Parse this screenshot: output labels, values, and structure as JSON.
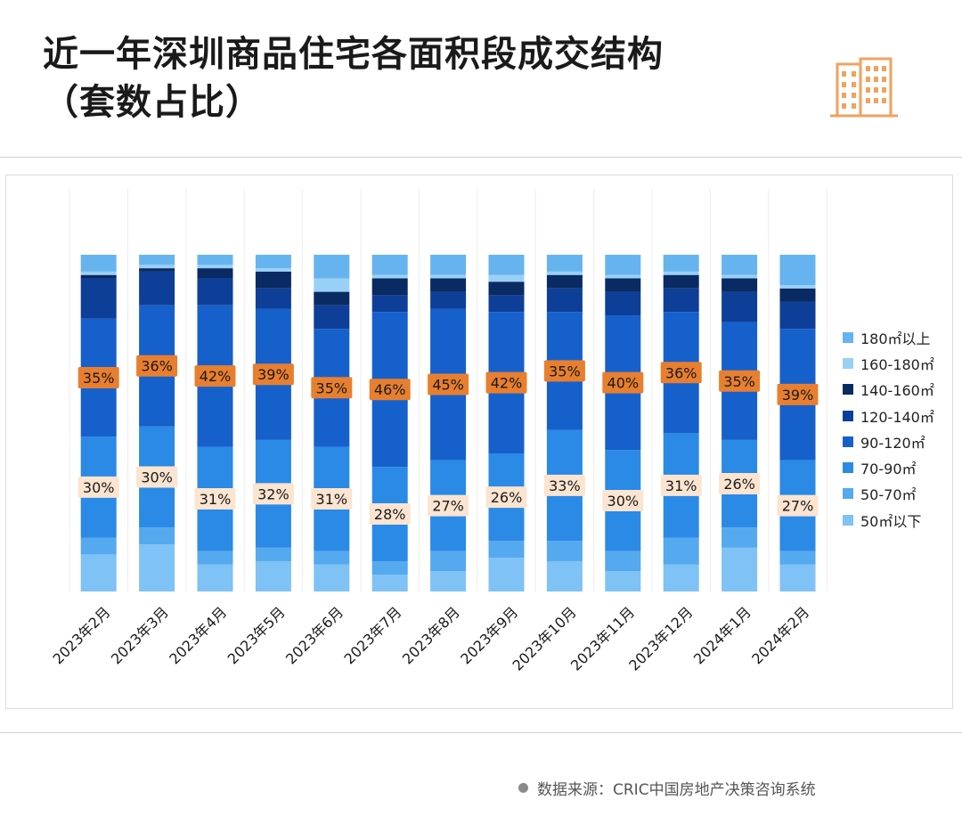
{
  "header": {
    "title_line1": "近一年深圳商品住宅各面积段成交结构",
    "title_line2": "（套数占比）"
  },
  "source": {
    "label": "数据来源：",
    "text": "CRIC中国房地产决策咨询系统"
  },
  "colors": {
    "label_orange": "#e87f2f",
    "label_peach": "#fbe4d0",
    "icon_orange": "#f0a25f"
  },
  "chart_data": {
    "type": "bar",
    "stacked": true,
    "normalized_percent": true,
    "categories": [
      "2023年2月",
      "2023年3月",
      "2023年4月",
      "2023年5月",
      "2023年6月",
      "2023年7月",
      "2023年8月",
      "2023年9月",
      "2023年10月",
      "2023年11月",
      "2023年12月",
      "2024年1月",
      "2024年2月"
    ],
    "series": [
      {
        "name": "50㎡以下",
        "color": "#7fc2f5",
        "values": [
          11,
          14,
          8,
          9,
          8,
          5,
          6,
          10,
          9,
          6,
          8,
          13,
          8
        ]
      },
      {
        "name": "50-70㎡",
        "color": "#55a9ee",
        "values": [
          5,
          5,
          4,
          4,
          4,
          4,
          6,
          5,
          6,
          6,
          8,
          6,
          4
        ]
      },
      {
        "name": "70-90㎡",
        "color": "#2a8ae6",
        "values": [
          30,
          30,
          31,
          32,
          31,
          28,
          27,
          26,
          33,
          30,
          31,
          26,
          27
        ]
      },
      {
        "name": "90-120㎡",
        "color": "#1660cc",
        "values": [
          35,
          36,
          42,
          39,
          35,
          46,
          45,
          42,
          35,
          40,
          36,
          35,
          39
        ]
      },
      {
        "name": "120-140㎡",
        "color": "#0e3f98",
        "values": [
          12,
          10,
          8,
          6,
          7,
          5,
          5,
          5,
          7,
          7,
          7,
          9,
          8
        ]
      },
      {
        "name": "140-160㎡",
        "color": "#0a2a64",
        "values": [
          1,
          1,
          3,
          5,
          4,
          5,
          4,
          4,
          4,
          4,
          4,
          4,
          4
        ]
      },
      {
        "name": "160-180㎡",
        "color": "#99d0f6",
        "values": [
          1,
          1,
          1,
          1,
          4,
          1,
          1,
          2,
          1,
          1,
          1,
          1,
          1
        ]
      },
      {
        "name": "180㎡以上",
        "color": "#66b4ef",
        "values": [
          5,
          3,
          3,
          4,
          7,
          6,
          6,
          6,
          5,
          6,
          5,
          6,
          9
        ]
      }
    ],
    "data_labels": {
      "90-120㎡": [
        "35%",
        "36%",
        "42%",
        "39%",
        "35%",
        "46%",
        "45%",
        "42%",
        "35%",
        "40%",
        "36%",
        "35%",
        "39%"
      ],
      "70-90㎡": [
        "30%",
        "30%",
        "31%",
        "32%",
        "31%",
        "28%",
        "27%",
        "26%",
        "33%",
        "30%",
        "31%",
        "26%",
        "27%"
      ]
    },
    "legend_position": "right",
    "legend_order": [
      "180㎡以上",
      "160-180㎡",
      "140-160㎡",
      "120-140㎡",
      "90-120㎡",
      "70-90㎡",
      "50-70㎡",
      "50㎡以下"
    ]
  }
}
